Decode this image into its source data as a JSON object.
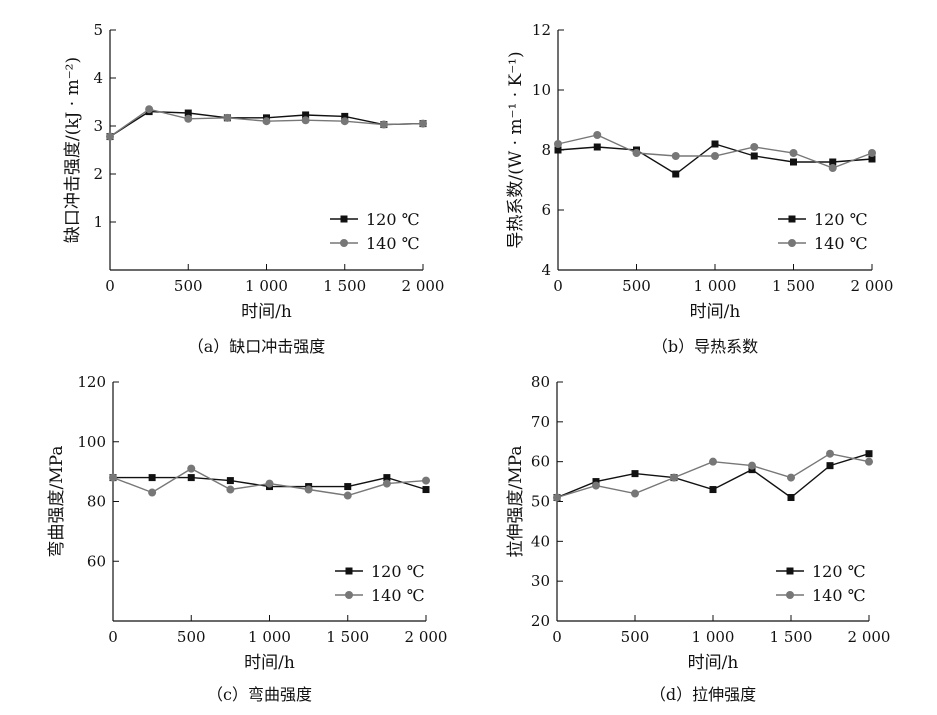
{
  "chart_data": [
    {
      "type": "line",
      "caption": "（a）缺口冲击强度",
      "xlabel": "时间/h",
      "ylabel": "缺口冲击强度/(kJ · m⁻²)",
      "xlim": [
        0,
        2000
      ],
      "ylim": [
        0,
        5
      ],
      "xticks": [
        0,
        500,
        1000,
        1500,
        2000
      ],
      "xtick_labels": [
        "0",
        "500",
        "1 000",
        "1 500",
        "2 000"
      ],
      "yticks": [
        1,
        2,
        3,
        4,
        5
      ],
      "ytick_labels": [
        "1",
        "2",
        "3",
        "4",
        "5"
      ],
      "legend_position": "bottom-right",
      "series": [
        {
          "name": "120 ℃",
          "marker": "square",
          "color": "#111111",
          "x": [
            0,
            250,
            500,
            750,
            1000,
            1250,
            1500,
            1750,
            2000
          ],
          "y": [
            2.78,
            3.3,
            3.27,
            3.17,
            3.17,
            3.23,
            3.2,
            3.03,
            3.05
          ]
        },
        {
          "name": "140 ℃",
          "marker": "circle",
          "color": "#777777",
          "x": [
            0,
            250,
            500,
            750,
            1000,
            1250,
            1500,
            1750,
            2000
          ],
          "y": [
            2.78,
            3.35,
            3.15,
            3.17,
            3.1,
            3.12,
            3.1,
            3.03,
            3.05
          ]
        }
      ]
    },
    {
      "type": "line",
      "caption": "（b）导热系数",
      "xlabel": "时间/h",
      "ylabel": "导热系数/(W · m⁻¹ · K⁻¹)",
      "xlim": [
        0,
        2000
      ],
      "ylim": [
        4,
        12
      ],
      "xticks": [
        0,
        500,
        1000,
        1500,
        2000
      ],
      "xtick_labels": [
        "0",
        "500",
        "1 000",
        "1 500",
        "2 000"
      ],
      "yticks": [
        4,
        6,
        8,
        10,
        12
      ],
      "ytick_labels": [
        "4",
        "6",
        "8",
        "10",
        "12"
      ],
      "legend_position": "bottom-right",
      "series": [
        {
          "name": "120 ℃",
          "marker": "square",
          "color": "#111111",
          "x": [
            0,
            250,
            500,
            750,
            1000,
            1250,
            1500,
            1750,
            2000
          ],
          "y": [
            8.0,
            8.1,
            8.0,
            7.2,
            8.2,
            7.8,
            7.6,
            7.6,
            7.7
          ]
        },
        {
          "name": "140 ℃",
          "marker": "circle",
          "color": "#777777",
          "x": [
            0,
            250,
            500,
            750,
            1000,
            1250,
            1500,
            1750,
            2000
          ],
          "y": [
            8.2,
            8.5,
            7.9,
            7.8,
            7.8,
            8.1,
            7.9,
            7.4,
            7.9
          ]
        }
      ]
    },
    {
      "type": "line",
      "caption": "（c）弯曲强度",
      "xlabel": "时间/h",
      "ylabel": "弯曲强度/MPa",
      "xlim": [
        0,
        2000
      ],
      "ylim": [
        40,
        120
      ],
      "xticks": [
        0,
        500,
        1000,
        1500,
        2000
      ],
      "xtick_labels": [
        "0",
        "500",
        "1 000",
        "1 500",
        "2 000"
      ],
      "yticks": [
        60,
        80,
        100,
        120
      ],
      "ytick_labels": [
        "60",
        "80",
        "100",
        "120"
      ],
      "legend_position": "bottom-right",
      "series": [
        {
          "name": "120 ℃",
          "marker": "square",
          "color": "#111111",
          "x": [
            0,
            250,
            500,
            750,
            1000,
            1250,
            1500,
            1750,
            2000
          ],
          "y": [
            88,
            88,
            88,
            87,
            85,
            85,
            85,
            88,
            84
          ]
        },
        {
          "name": "140 ℃",
          "marker": "circle",
          "color": "#777777",
          "x": [
            0,
            250,
            500,
            750,
            1000,
            1250,
            1500,
            1750,
            2000
          ],
          "y": [
            88,
            83,
            91,
            84,
            86,
            84,
            82,
            86,
            87
          ]
        }
      ]
    },
    {
      "type": "line",
      "caption": "（d）拉伸强度",
      "xlabel": "时间/h",
      "ylabel": "拉伸强度/MPa",
      "xlim": [
        0,
        2000
      ],
      "ylim": [
        20,
        80
      ],
      "xticks": [
        0,
        500,
        1000,
        1500,
        2000
      ],
      "xtick_labels": [
        "0",
        "500",
        "1 000",
        "1 500",
        "2 000"
      ],
      "yticks": [
        20,
        30,
        40,
        50,
        60,
        70,
        80
      ],
      "ytick_labels": [
        "20",
        "30",
        "40",
        "50",
        "60",
        "70",
        "80"
      ],
      "legend_position": "bottom-right",
      "series": [
        {
          "name": "120 ℃",
          "marker": "square",
          "color": "#111111",
          "x": [
            0,
            250,
            500,
            750,
            1000,
            1250,
            1500,
            1750,
            2000
          ],
          "y": [
            51,
            55,
            57,
            56,
            53,
            58,
            51,
            59,
            62
          ]
        },
        {
          "name": "140 ℃",
          "marker": "circle",
          "color": "#777777",
          "x": [
            0,
            250,
            500,
            750,
            1000,
            1250,
            1500,
            1750,
            2000
          ],
          "y": [
            51,
            54,
            52,
            56,
            60,
            59,
            56,
            62,
            60
          ]
        }
      ]
    }
  ]
}
